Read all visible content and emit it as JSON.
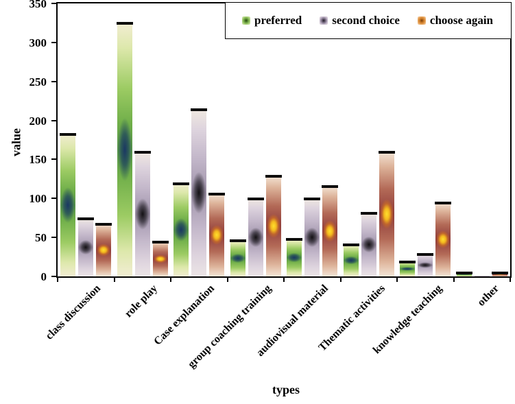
{
  "figure": {
    "ylabel": "value",
    "xlabel": "types"
  },
  "legend": {
    "entries": [
      {
        "label": "preferred",
        "swatch": "green-gradient-marker"
      },
      {
        "label": "second choice",
        "swatch": "lavender-gradient-marker"
      },
      {
        "label": "choose again",
        "swatch": "orange-gradient-marker"
      }
    ]
  },
  "colors": {
    "preferred_main": "#76b043",
    "preferred_center": "#1c3a6a",
    "second_main": "#b9aec4",
    "second_center": "#151515",
    "choose_main": "#9a4540",
    "choose_center": "#f5c518",
    "bar_edge_fade": "#f2edd3",
    "bar_cap": "#0b0b0b",
    "axis": "#000000"
  },
  "chart_data": {
    "type": "bar",
    "title": "",
    "xlabel": "types",
    "ylabel": "value",
    "ylim": [
      0,
      350
    ],
    "yticks": [
      0,
      50,
      100,
      150,
      200,
      250,
      300,
      350
    ],
    "grid": false,
    "legend_position": "top-right-inside",
    "bar_style": "vertical gradient with dark radial center spot and black top cap",
    "categories": [
      "class discussion",
      "role play",
      "Case explanation",
      "group coaching training",
      "audiovisual material",
      "Thematic activities",
      "knowledge teaching",
      "other"
    ],
    "series": [
      {
        "name": "preferred",
        "values": [
          183,
          325,
          120,
          47,
          48,
          41,
          19,
          5
        ]
      },
      {
        "name": "second choice",
        "values": [
          75,
          160,
          215,
          100,
          100,
          82,
          29,
          1
        ]
      },
      {
        "name": "choose again",
        "values": [
          68,
          45,
          106,
          129,
          116,
          160,
          95,
          5
        ]
      }
    ]
  }
}
